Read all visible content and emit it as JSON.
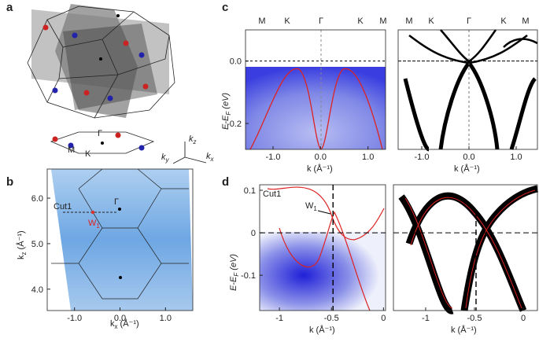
{
  "panel_labels": [
    "a",
    "b",
    "c",
    "d"
  ],
  "a": {
    "bz_labels": [
      "M",
      "K",
      "Γ"
    ],
    "axes": [
      {
        "base": "k",
        "sub": "z"
      },
      {
        "base": "k",
        "sub": "y"
      },
      {
        "base": "k",
        "sub": "x"
      }
    ]
  },
  "b": {
    "xlabel": {
      "base": "k",
      "sub": "x",
      "unit": " (Å⁻¹)"
    },
    "ylabel": {
      "base": "k",
      "sub": "z",
      "unit": " (Å⁻¹)"
    },
    "xlim": [
      -1.6,
      1.6
    ],
    "xticks": [
      {
        "value": -1,
        "label": "-1.0"
      },
      {
        "value": 0,
        "label": "0.0"
      },
      {
        "value": 1,
        "label": "1.0"
      }
    ],
    "ylim": [
      3.53,
      6.64
    ],
    "yticks": [
      {
        "value": 4,
        "label": "4.0"
      },
      {
        "value": 5,
        "label": "5.0"
      },
      {
        "value": 6,
        "label": "6.0"
      }
    ],
    "cut": "Cut1",
    "gamma": "Γ",
    "w": {
      "base": "W",
      "sub": "1"
    }
  },
  "c": {
    "symmetry_left": [
      "M",
      "K",
      "Γ",
      "K",
      "M"
    ],
    "symmetry_right": [
      "M",
      "K",
      "Γ",
      "K",
      "M"
    ],
    "ylabel": {
      "base": "E-E",
      "sub": "F",
      "unit": " (eV)"
    },
    "xlabel": "k (Å⁻¹)",
    "left": {
      "xlim": [
        -1.58,
        1.37
      ],
      "xticks": [
        {
          "value": -1,
          "label": "-1.0"
        },
        {
          "value": 0,
          "label": "0.0"
        },
        {
          "value": 1,
          "label": "1.0"
        }
      ],
      "ylim": [
        -0.283,
        0.1
      ],
      "yticks": [
        {
          "value": 0,
          "label": "0.0"
        },
        {
          "value": -0.2,
          "label": "-0.2"
        }
      ]
    },
    "right": {
      "xlim": [
        -1.5,
        1.45
      ],
      "xticks": [
        {
          "value": -1,
          "label": "-1.0"
        },
        {
          "value": 0,
          "label": "0.0"
        },
        {
          "value": 1,
          "label": "1.0"
        }
      ],
      "ylim": [
        -0.283,
        0.1
      ]
    }
  },
  "d": {
    "ylabel": {
      "base": "E-E",
      "sub": "F",
      "unit": " (eV)"
    },
    "xlabel": "k (Å⁻¹)",
    "cut": "Cut1",
    "w": {
      "base": "W",
      "sub": "1"
    },
    "left": {
      "xlim": [
        -1.19,
        0.02
      ],
      "xticks": [
        -1,
        -0.5,
        0
      ],
      "ylim": [
        -0.183,
        0.113
      ],
      "yticks": [
        0.1,
        0,
        -0.1
      ]
    },
    "right": {
      "xlim": [
        -1.33,
        0.145
      ],
      "xticks": [
        -1,
        -0.5,
        0
      ],
      "ylim": [
        -0.183,
        0.113
      ]
    }
  }
}
